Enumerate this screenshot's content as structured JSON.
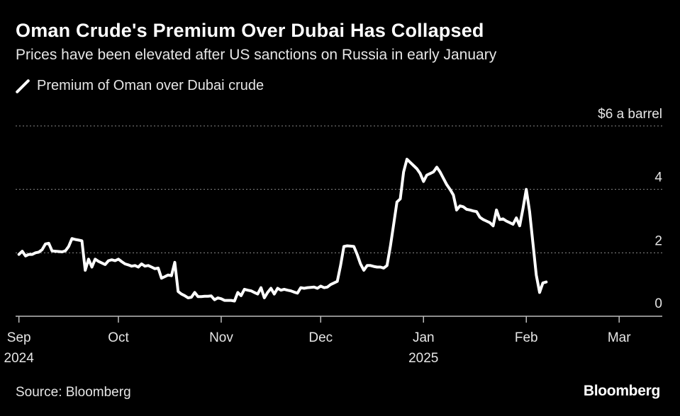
{
  "header": {
    "title": "Oman Crude's Premium Over Dubai Has Collapsed",
    "subtitle": "Prices have been elevated after US sanctions on Russia in early January"
  },
  "legend": {
    "label": "Premium of Oman over Dubai crude",
    "color": "#ffffff"
  },
  "footer": {
    "source": "Source: Bloomberg",
    "brand": "Bloomberg"
  },
  "chart_data": {
    "type": "line",
    "title": "Oman Crude's Premium Over Dubai Has Collapsed",
    "subtitle": "Prices have been elevated after US sanctions on Russia in early January",
    "ylabel": "$ a barrel",
    "ylim": [
      0,
      6
    ],
    "yticks": [
      {
        "value": 0,
        "label": "0"
      },
      {
        "value": 2,
        "label": "2"
      },
      {
        "value": 4,
        "label": "4"
      },
      {
        "value": 6,
        "label": "$6 a barrel"
      }
    ],
    "xlim_days": [
      -1,
      194
    ],
    "xticks": [
      {
        "day": 0,
        "label": "Sep",
        "sublabel": "2024"
      },
      {
        "day": 30,
        "label": "Oct",
        "sublabel": ""
      },
      {
        "day": 61,
        "label": "Nov",
        "sublabel": ""
      },
      {
        "day": 91,
        "label": "Dec",
        "sublabel": ""
      },
      {
        "day": 122,
        "label": "Jan",
        "sublabel": "2025"
      },
      {
        "day": 153,
        "label": "Feb",
        "sublabel": ""
      },
      {
        "day": 181,
        "label": "Mar",
        "sublabel": ""
      }
    ],
    "grid": true,
    "series": [
      {
        "name": "Premium of Oman over Dubai crude",
        "color": "#ffffff",
        "points": [
          [
            0,
            1.95
          ],
          [
            1,
            2.05
          ],
          [
            2,
            1.9
          ],
          [
            3,
            1.95
          ],
          [
            4,
            1.95
          ],
          [
            5,
            2.0
          ],
          [
            6,
            2.02
          ],
          [
            7,
            2.1
          ],
          [
            8,
            2.28
          ],
          [
            9,
            2.3
          ],
          [
            10,
            2.06
          ],
          [
            11,
            2.05
          ],
          [
            12,
            2.04
          ],
          [
            13,
            2.03
          ],
          [
            14,
            2.06
          ],
          [
            15,
            2.2
          ],
          [
            16,
            2.45
          ],
          [
            17,
            2.42
          ],
          [
            18,
            2.4
          ],
          [
            19,
            2.38
          ],
          [
            20,
            1.45
          ],
          [
            21,
            1.8
          ],
          [
            22,
            1.55
          ],
          [
            23,
            1.8
          ],
          [
            24,
            1.73
          ],
          [
            25,
            1.68
          ],
          [
            26,
            1.63
          ],
          [
            27,
            1.75
          ],
          [
            28,
            1.78
          ],
          [
            29,
            1.75
          ],
          [
            30,
            1.8
          ],
          [
            31,
            1.72
          ],
          [
            32,
            1.65
          ],
          [
            33,
            1.62
          ],
          [
            34,
            1.58
          ],
          [
            35,
            1.6
          ],
          [
            36,
            1.55
          ],
          [
            37,
            1.65
          ],
          [
            38,
            1.58
          ],
          [
            39,
            1.6
          ],
          [
            40,
            1.55
          ],
          [
            41,
            1.5
          ],
          [
            42,
            1.52
          ],
          [
            43,
            1.2
          ],
          [
            44,
            1.25
          ],
          [
            45,
            1.3
          ],
          [
            46,
            1.28
          ],
          [
            47,
            1.7
          ],
          [
            48,
            0.78
          ],
          [
            49,
            0.7
          ],
          [
            50,
            0.65
          ],
          [
            51,
            0.58
          ],
          [
            52,
            0.6
          ],
          [
            53,
            0.75
          ],
          [
            54,
            0.62
          ],
          [
            55,
            0.62
          ],
          [
            56,
            0.63
          ],
          [
            57,
            0.63
          ],
          [
            58,
            0.64
          ],
          [
            59,
            0.52
          ],
          [
            60,
            0.58
          ],
          [
            61,
            0.55
          ],
          [
            62,
            0.5
          ],
          [
            63,
            0.5
          ],
          [
            64,
            0.5
          ],
          [
            65,
            0.48
          ],
          [
            66,
            0.75
          ],
          [
            67,
            0.65
          ],
          [
            68,
            0.85
          ],
          [
            69,
            0.82
          ],
          [
            70,
            0.8
          ],
          [
            71,
            0.75
          ],
          [
            72,
            0.7
          ],
          [
            73,
            0.9
          ],
          [
            74,
            0.58
          ],
          [
            75,
            0.75
          ],
          [
            76,
            0.88
          ],
          [
            77,
            0.7
          ],
          [
            78,
            0.88
          ],
          [
            79,
            0.82
          ],
          [
            80,
            0.85
          ],
          [
            81,
            0.82
          ],
          [
            82,
            0.8
          ],
          [
            83,
            0.76
          ],
          [
            84,
            0.73
          ],
          [
            85,
            0.9
          ],
          [
            86,
            0.88
          ],
          [
            87,
            0.9
          ],
          [
            88,
            0.91
          ],
          [
            89,
            0.92
          ],
          [
            90,
            0.88
          ],
          [
            91,
            0.95
          ],
          [
            92,
            0.9
          ],
          [
            93,
            0.92
          ],
          [
            94,
            1.0
          ],
          [
            95,
            1.05
          ],
          [
            96,
            1.1
          ],
          [
            97,
            1.6
          ],
          [
            98,
            2.2
          ],
          [
            99,
            2.22
          ],
          [
            100,
            2.21
          ],
          [
            101,
            2.2
          ],
          [
            102,
            1.95
          ],
          [
            103,
            1.65
          ],
          [
            104,
            1.45
          ],
          [
            105,
            1.6
          ],
          [
            106,
            1.6
          ],
          [
            107,
            1.57
          ],
          [
            108,
            1.55
          ],
          [
            109,
            1.55
          ],
          [
            110,
            1.52
          ],
          [
            111,
            1.6
          ],
          [
            112,
            2.2
          ],
          [
            113,
            2.9
          ],
          [
            114,
            3.6
          ],
          [
            115,
            3.7
          ],
          [
            116,
            4.55
          ],
          [
            117,
            4.95
          ],
          [
            118,
            4.85
          ],
          [
            119,
            4.75
          ],
          [
            120,
            4.65
          ],
          [
            121,
            4.5
          ],
          [
            122,
            4.25
          ],
          [
            123,
            4.45
          ],
          [
            124,
            4.5
          ],
          [
            125,
            4.55
          ],
          [
            126,
            4.7
          ],
          [
            127,
            4.55
          ],
          [
            128,
            4.35
          ],
          [
            129,
            4.15
          ],
          [
            130,
            4.0
          ],
          [
            131,
            3.82
          ],
          [
            132,
            3.35
          ],
          [
            133,
            3.48
          ],
          [
            134,
            3.45
          ],
          [
            135,
            3.37
          ],
          [
            136,
            3.35
          ],
          [
            137,
            3.32
          ],
          [
            138,
            3.3
          ],
          [
            139,
            3.12
          ],
          [
            140,
            3.05
          ],
          [
            141,
            3.0
          ],
          [
            142,
            2.95
          ],
          [
            143,
            2.85
          ],
          [
            144,
            3.35
          ],
          [
            145,
            3.05
          ],
          [
            146,
            3.07
          ],
          [
            147,
            3.0
          ],
          [
            148,
            2.95
          ],
          [
            149,
            2.9
          ],
          [
            150,
            3.1
          ],
          [
            151,
            2.85
          ],
          [
            152,
            3.4
          ],
          [
            153,
            4.0
          ],
          [
            154,
            3.3
          ],
          [
            155,
            2.3
          ],
          [
            156,
            1.3
          ],
          [
            157,
            0.75
          ],
          [
            158,
            1.05
          ],
          [
            159,
            1.08
          ]
        ]
      }
    ]
  }
}
